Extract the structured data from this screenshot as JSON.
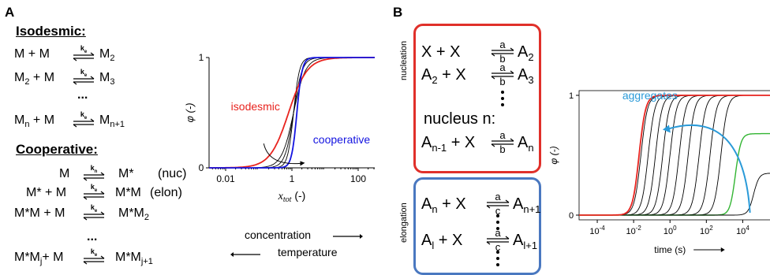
{
  "panel_a": {
    "label": "A",
    "isodesmic_heading": "Isodesmic:",
    "cooperative_heading": "Cooperative:",
    "k_e": "k",
    "k_e_sub": "e",
    "k_n": "k",
    "k_n_sub": "n",
    "iso_eq1": {
      "lhs": "M  +  M",
      "rhs": "M",
      "rhs_sub": "2"
    },
    "iso_eq2": {
      "lhs": "M",
      "lhs_sub": "2",
      "lhs_rest": " + M",
      "rhs": "M",
      "rhs_sub": "3"
    },
    "iso_dots": "...",
    "iso_eq3": {
      "lhs": "M",
      "lhs_sub": "n",
      "lhs_rest": " + M",
      "rhs": "M",
      "rhs_sub": "n+1"
    },
    "coop_eq1": {
      "lhs": "M",
      "rhs": "M*",
      "note": "(nuc)"
    },
    "coop_eq2": {
      "lhs": "M* + M",
      "rhs": "M*M",
      "note": "(elon)"
    },
    "coop_eq3": {
      "lhs": "M*M + M",
      "rhs": "M*M",
      "rhs_sub": "2"
    },
    "coop_dots": "...",
    "coop_eq4": {
      "lhs": "M*M",
      "lhs_sub": "j",
      "lhs_rest": "+ M",
      "rhs": "M*M",
      "rhs_sub": "j+1"
    },
    "concentration_label": "concentration",
    "temperature_label": "temperature"
  },
  "chart_a": {
    "type": "line",
    "ylabel": "φ (-)",
    "xlabel": "x",
    "xlabel_sub": "tot",
    "xlabel_unit": "(-)",
    "x_ticks": [
      "0.01",
      "1",
      "100"
    ],
    "y_ticks": [
      "0",
      "1"
    ],
    "xscale": "log",
    "curve_labels": {
      "isodesmic": "isodesmic",
      "cooperative": "cooperative"
    },
    "colors": {
      "isodesmic": "#e8231e",
      "cooperative": "#1414e0",
      "intermediate": "#000000"
    }
  },
  "panel_b": {
    "label": "B",
    "nucleation_label": "nucleation",
    "elongation_label": "elongation",
    "nuc_box_color": "#e0302a",
    "elong_box_color": "#4a78c0",
    "nuc_eq1": {
      "lhs": "X   +  X",
      "rhs": "A",
      "rhs_sub": "2",
      "top": "a",
      "bottom": "b"
    },
    "nuc_eq2": {
      "lhs": "A",
      "lhs_sub": "2",
      "lhs_rest": " +  X",
      "rhs": "A",
      "rhs_sub": "3",
      "top": "a",
      "bottom": "b"
    },
    "nuc_text": "nucleus n:",
    "nuc_eq3": {
      "lhs": "A",
      "lhs_sub": "n-1",
      "lhs_rest": " + X",
      "rhs": "A",
      "rhs_sub": "n",
      "top": "a",
      "bottom": "b"
    },
    "elong_eq1": {
      "lhs": "A",
      "lhs_sub": "n",
      "lhs_rest": "  + X",
      "rhs": "A",
      "rhs_sub": "n+1",
      "top": "a",
      "bottom": "c"
    },
    "elong_eq2": {
      "lhs": "A",
      "lhs_sub": "l",
      "lhs_rest": "  + X",
      "rhs": "A",
      "rhs_sub": "l+1",
      "top": "a",
      "bottom": "c"
    }
  },
  "chart_b": {
    "type": "line",
    "ylabel": "φ (-)",
    "xlabel": "time (s)",
    "x_ticks": [
      "10-4",
      "10-2",
      "100",
      "102",
      "104"
    ],
    "x_tick_base": "10",
    "x_tick_exps": [
      "-4",
      "-2",
      "0",
      "2",
      "4"
    ],
    "y_ticks": [
      "0",
      "1"
    ],
    "xscale": "log",
    "annotation": "aggregates",
    "colors": {
      "envelope": "#e8231e",
      "highlight": "#33b533",
      "arrow": "#2a9ad8",
      "curves": "#000000"
    }
  }
}
